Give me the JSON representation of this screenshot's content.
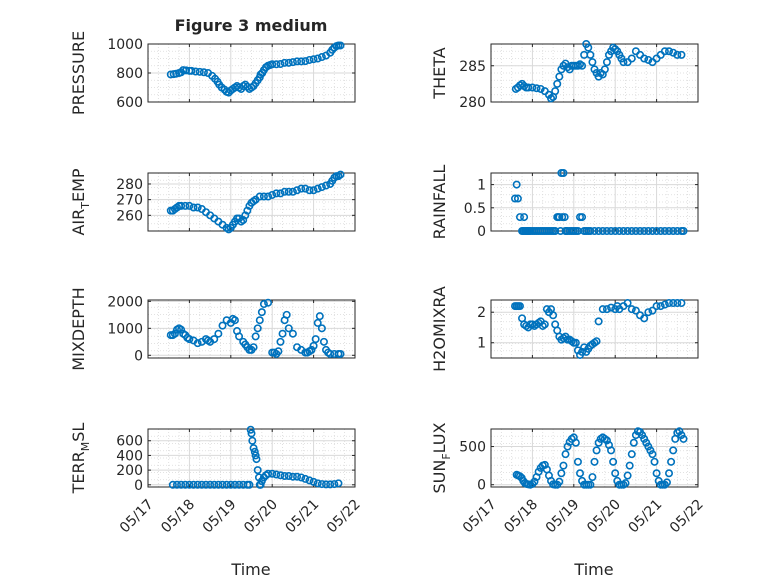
{
  "figure": {
    "title": "Figure 3 medium",
    "marker_color": "#0072bd",
    "axis_color": "#262626",
    "grid_color": "#d9d9d9"
  },
  "chart_data": [
    {
      "type": "scatter",
      "title": "Figure 3 medium",
      "ylabel": "PRESSURE",
      "ylabel_parts": [
        [
          "PRESSURE",
          ""
        ]
      ],
      "xlabel": "",
      "xlim": [
        0,
        5
      ],
      "ylim": [
        600,
        1000
      ],
      "ytick_values": [
        600,
        800,
        1000
      ],
      "yticks": [
        "600",
        "800",
        "1000"
      ],
      "xticks": [
        "05/17",
        "05/18",
        "05/19",
        "05/20",
        "05/21",
        "05/22"
      ],
      "grid": true,
      "x": [
        0.55,
        0.62,
        0.68,
        0.75,
        0.8,
        0.85,
        0.92,
        1.0,
        1.05,
        1.15,
        1.25,
        1.35,
        1.45,
        1.55,
        1.62,
        1.68,
        1.72,
        1.78,
        1.85,
        1.9,
        1.95,
        2.0,
        2.05,
        2.1,
        2.15,
        2.2,
        2.25,
        2.3,
        2.35,
        2.4,
        2.45,
        2.5,
        2.55,
        2.6,
        2.65,
        2.7,
        2.72,
        2.76,
        2.8,
        2.85,
        2.9,
        2.95,
        3.0,
        3.1,
        3.2,
        3.3,
        3.4,
        3.5,
        3.6,
        3.7,
        3.8,
        3.9,
        4.0,
        4.1,
        4.2,
        4.3,
        4.4,
        4.45,
        4.5,
        4.55,
        4.6,
        4.65
      ],
      "y": [
        790,
        792,
        795,
        800,
        805,
        820,
        818,
        815,
        815,
        810,
        808,
        805,
        800,
        780,
        760,
        740,
        720,
        700,
        685,
        670,
        665,
        680,
        690,
        700,
        710,
        700,
        690,
        710,
        720,
        705,
        690,
        700,
        710,
        730,
        750,
        770,
        790,
        800,
        820,
        840,
        850,
        855,
        860,
        860,
        862,
        870,
        870,
        875,
        880,
        880,
        882,
        890,
        895,
        900,
        910,
        920,
        940,
        960,
        975,
        985,
        990,
        990
      ]
    },
    {
      "type": "scatter",
      "ylabel": "THETA",
      "ylabel_parts": [
        [
          "THETA",
          ""
        ]
      ],
      "xlabel": "",
      "xlim": [
        0,
        5
      ],
      "ylim": [
        280,
        288
      ],
      "ytick_values": [
        280,
        285
      ],
      "yticks": [
        "280",
        "285"
      ],
      "xticks": [
        "05/17",
        "05/18",
        "05/19",
        "05/20",
        "05/21",
        "05/22"
      ],
      "grid": true,
      "x": [
        0.6,
        0.65,
        0.7,
        0.75,
        0.8,
        0.85,
        0.9,
        1.0,
        1.1,
        1.2,
        1.3,
        1.4,
        1.45,
        1.5,
        1.55,
        1.6,
        1.65,
        1.7,
        1.75,
        1.8,
        1.85,
        1.9,
        1.95,
        2.0,
        2.05,
        2.1,
        2.15,
        2.2,
        2.25,
        2.3,
        2.35,
        2.4,
        2.45,
        2.5,
        2.55,
        2.6,
        2.65,
        2.7,
        2.75,
        2.8,
        2.85,
        2.9,
        2.95,
        3.0,
        3.05,
        3.1,
        3.15,
        3.2,
        3.3,
        3.4,
        3.5,
        3.6,
        3.7,
        3.8,
        3.9,
        4.0,
        4.1,
        4.2,
        4.3,
        4.4,
        4.5,
        4.6
      ],
      "y": [
        281.8,
        282.0,
        282.3,
        282.5,
        282.2,
        282.0,
        282.0,
        282.0,
        281.9,
        281.8,
        281.5,
        281.0,
        280.5,
        280.7,
        281.5,
        282.5,
        283.5,
        284.5,
        285.0,
        285.3,
        284.8,
        284.5,
        285.0,
        285.0,
        285.0,
        285.0,
        285.2,
        285.0,
        286.5,
        288.0,
        287.5,
        286.5,
        285.5,
        284.5,
        284.0,
        283.5,
        284.0,
        283.8,
        284.5,
        285.5,
        286.5,
        287.0,
        287.5,
        287.3,
        287.0,
        286.5,
        286.0,
        285.5,
        285.5,
        286.0,
        287.0,
        286.5,
        286.0,
        285.8,
        285.5,
        286.0,
        286.5,
        287.0,
        287.0,
        286.8,
        286.5,
        286.5
      ]
    },
    {
      "type": "scatter",
      "ylabel": "AIR_TEMP",
      "ylabel_parts": [
        [
          "AIR",
          ""
        ],
        [
          "T",
          "sub"
        ],
        [
          "EMP",
          ""
        ]
      ],
      "xlabel": "",
      "xlim": [
        0,
        5
      ],
      "ylim": [
        250,
        287
      ],
      "ytick_values": [
        260,
        270,
        280
      ],
      "yticks": [
        "260",
        "270",
        "280"
      ],
      "xticks": [
        "05/17",
        "05/18",
        "05/19",
        "05/20",
        "05/21",
        "05/22"
      ],
      "grid": true,
      "x": [
        0.55,
        0.6,
        0.65,
        0.7,
        0.75,
        0.8,
        0.9,
        1.0,
        1.1,
        1.2,
        1.3,
        1.4,
        1.5,
        1.6,
        1.7,
        1.8,
        1.9,
        1.95,
        2.0,
        2.05,
        2.1,
        2.15,
        2.2,
        2.25,
        2.3,
        2.35,
        2.4,
        2.45,
        2.5,
        2.55,
        2.6,
        2.7,
        2.8,
        2.9,
        3.0,
        3.1,
        3.2,
        3.3,
        3.4,
        3.5,
        3.6,
        3.7,
        3.8,
        3.9,
        4.0,
        4.1,
        4.2,
        4.3,
        4.4,
        4.45,
        4.5,
        4.55,
        4.6,
        4.65
      ],
      "y": [
        263,
        263,
        264,
        265,
        266,
        266,
        266,
        266,
        265,
        265,
        264,
        262,
        260,
        258,
        256,
        254,
        252,
        251,
        252,
        254,
        256,
        258,
        258,
        256,
        257,
        260,
        263,
        266,
        268,
        269,
        270,
        272,
        272,
        272,
        273,
        274,
        274,
        275,
        275,
        275,
        276,
        277,
        277,
        276,
        276,
        277,
        278,
        279,
        280,
        282,
        284,
        285,
        285,
        286
      ]
    },
    {
      "type": "scatter",
      "ylabel": "RAINFALL",
      "ylabel_parts": [
        [
          "RAINFALL",
          ""
        ]
      ],
      "xlabel": "",
      "xlim": [
        0,
        5
      ],
      "ylim": [
        0,
        1.25
      ],
      "ytick_values": [
        0,
        0.5,
        1
      ],
      "yticks": [
        "0",
        "0.5",
        "1"
      ],
      "xticks": [
        "05/17",
        "05/18",
        "05/19",
        "05/20",
        "05/21",
        "05/22"
      ],
      "grid": true,
      "x": [
        0.58,
        0.62,
        0.65,
        0.7,
        0.75,
        0.78,
        0.8,
        0.82,
        0.85,
        0.88,
        0.9,
        0.92,
        0.95,
        1.0,
        1.05,
        1.1,
        1.15,
        1.2,
        1.25,
        1.3,
        1.35,
        1.4,
        1.45,
        1.5,
        1.55,
        1.6,
        1.62,
        1.65,
        1.68,
        1.7,
        1.72,
        1.75,
        1.78,
        1.8,
        1.82,
        1.85,
        1.9,
        1.95,
        2.0,
        2.05,
        2.1,
        2.15,
        2.2,
        2.25,
        2.3,
        2.35,
        2.4,
        2.5,
        2.6,
        2.7,
        2.8,
        2.9,
        3.0,
        3.1,
        3.2,
        3.3,
        3.4,
        3.5,
        3.6,
        3.7,
        3.8,
        3.9,
        4.0,
        4.1,
        4.2,
        4.3,
        4.4,
        4.5,
        4.6,
        4.65
      ],
      "y": [
        0.7,
        1.0,
        0.7,
        0.3,
        0,
        0,
        0.3,
        0,
        0,
        0,
        0,
        0,
        0,
        0,
        0,
        0,
        0,
        0,
        0,
        0,
        0,
        0,
        0,
        0,
        0,
        0.3,
        0.3,
        0.3,
        0,
        1.25,
        0.3,
        1.25,
        0.3,
        0,
        0,
        0,
        0,
        0,
        0,
        0,
        0,
        0.3,
        0.3,
        0,
        0,
        0,
        0,
        0,
        0,
        0,
        0,
        0,
        0,
        0,
        0,
        0,
        0,
        0,
        0,
        0,
        0,
        0,
        0,
        0,
        0,
        0,
        0,
        0,
        0,
        0
      ]
    },
    {
      "type": "scatter",
      "ylabel": "MIXDEPTH",
      "ylabel_parts": [
        [
          "MIXDEPTH",
          ""
        ]
      ],
      "xlabel": "",
      "xlim": [
        0,
        5
      ],
      "ylim": [
        -100,
        2050
      ],
      "ytick_values": [
        0,
        1000,
        2000
      ],
      "yticks": [
        "0",
        "1000",
        "2000"
      ],
      "xticks": [
        "05/17",
        "05/18",
        "05/19",
        "05/20",
        "05/21",
        "05/22"
      ],
      "grid": true,
      "x": [
        0.55,
        0.6,
        0.65,
        0.7,
        0.75,
        0.8,
        0.85,
        0.9,
        0.95,
        1.0,
        1.1,
        1.2,
        1.3,
        1.4,
        1.45,
        1.5,
        1.6,
        1.7,
        1.8,
        1.9,
        2.0,
        2.05,
        2.1,
        2.15,
        2.2,
        2.3,
        2.35,
        2.4,
        2.45,
        2.5,
        2.55,
        2.6,
        2.65,
        2.7,
        2.75,
        2.8,
        2.9,
        3.0,
        3.05,
        3.1,
        3.15,
        3.2,
        3.25,
        3.3,
        3.35,
        3.4,
        3.5,
        3.6,
        3.7,
        3.8,
        3.85,
        3.9,
        3.95,
        4.0,
        4.05,
        4.1,
        4.15,
        4.2,
        4.25,
        4.3,
        4.35,
        4.4,
        4.5,
        4.6,
        4.65
      ],
      "y": [
        750,
        750,
        800,
        950,
        1000,
        950,
        800,
        750,
        650,
        600,
        550,
        450,
        500,
        600,
        550,
        500,
        600,
        800,
        1100,
        1300,
        1200,
        1350,
        1300,
        900,
        700,
        500,
        400,
        300,
        200,
        200,
        300,
        700,
        1000,
        1300,
        1600,
        1900,
        1950,
        100,
        100,
        50,
        150,
        500,
        800,
        1300,
        1500,
        1000,
        800,
        300,
        200,
        100,
        100,
        150,
        200,
        350,
        600,
        1200,
        1450,
        1000,
        500,
        200,
        100,
        50,
        50,
        50,
        50
      ]
    },
    {
      "type": "scatter",
      "ylabel": "H2OMIXRA",
      "ylabel_parts": [
        [
          "H2OMIXRA",
          ""
        ]
      ],
      "xlabel": "",
      "xlim": [
        0,
        5
      ],
      "ylim": [
        0.5,
        2.4
      ],
      "ytick_values": [
        1,
        2
      ],
      "yticks": [
        "1",
        "2"
      ],
      "xticks": [
        "05/17",
        "05/18",
        "05/19",
        "05/20",
        "05/21",
        "05/22"
      ],
      "grid": true,
      "x": [
        0.58,
        0.62,
        0.66,
        0.7,
        0.75,
        0.8,
        0.85,
        0.9,
        0.95,
        1.0,
        1.05,
        1.1,
        1.15,
        1.2,
        1.25,
        1.3,
        1.35,
        1.4,
        1.45,
        1.5,
        1.55,
        1.6,
        1.65,
        1.7,
        1.75,
        1.8,
        1.85,
        1.9,
        1.95,
        2.0,
        2.05,
        2.1,
        2.15,
        2.2,
        2.25,
        2.3,
        2.35,
        2.4,
        2.45,
        2.5,
        2.55,
        2.6,
        2.7,
        2.8,
        2.9,
        3.0,
        3.05,
        3.1,
        3.2,
        3.3,
        3.4,
        3.5,
        3.6,
        3.7,
        3.8,
        3.9,
        4.0,
        4.1,
        4.2,
        4.3,
        4.4,
        4.5,
        4.6
      ],
      "y": [
        2.2,
        2.2,
        2.2,
        2.2,
        1.8,
        1.6,
        1.55,
        1.5,
        1.6,
        1.6,
        1.55,
        1.6,
        1.65,
        1.7,
        1.55,
        1.6,
        2.1,
        2.0,
        2.1,
        1.9,
        1.6,
        1.4,
        1.2,
        1.1,
        1.15,
        1.2,
        1.1,
        1.1,
        1.05,
        1.0,
        1.0,
        0.75,
        0.6,
        0.7,
        0.85,
        0.7,
        0.8,
        0.9,
        0.95,
        1.0,
        1.05,
        1.7,
        2.1,
        2.1,
        2.15,
        2.1,
        2.2,
        2.1,
        2.2,
        2.3,
        2.1,
        2.05,
        1.9,
        1.8,
        2.0,
        2.05,
        2.2,
        2.2,
        2.25,
        2.3,
        2.3,
        2.3,
        2.3
      ]
    },
    {
      "type": "scatter",
      "ylabel": "TERR_MSL",
      "ylabel_parts": [
        [
          "TERR",
          ""
        ],
        [
          "M",
          "sub"
        ],
        [
          "SL",
          ""
        ]
      ],
      "xlabel": "",
      "xlim": [
        0,
        5
      ],
      "ylim": [
        -30,
        760
      ],
      "ytick_values": [
        0,
        200,
        400,
        600
      ],
      "yticks": [
        "0",
        "200",
        "400",
        "600"
      ],
      "xticks": [
        "05/17",
        "05/18",
        "05/19",
        "05/20",
        "05/21",
        "05/22"
      ],
      "grid": true,
      "x": [
        0.6,
        0.7,
        0.8,
        0.9,
        1.0,
        1.1,
        1.2,
        1.3,
        1.4,
        1.5,
        1.6,
        1.7,
        1.8,
        1.9,
        2.0,
        2.1,
        2.2,
        2.3,
        2.4,
        2.45,
        2.48,
        2.5,
        2.52,
        2.55,
        2.58,
        2.6,
        2.62,
        2.65,
        2.68,
        2.7,
        2.72,
        2.75,
        2.8,
        2.85,
        2.9,
        3.0,
        3.1,
        3.2,
        3.3,
        3.4,
        3.5,
        3.6,
        3.7,
        3.8,
        3.9,
        4.0,
        4.1,
        4.2,
        4.3,
        4.4,
        4.5,
        4.6
      ],
      "y": [
        0,
        0,
        0,
        0,
        0,
        0,
        0,
        0,
        0,
        0,
        0,
        0,
        0,
        0,
        0,
        0,
        0,
        0,
        0,
        0,
        750,
        700,
        600,
        500,
        450,
        400,
        350,
        200,
        100,
        0,
        0,
        50,
        100,
        130,
        150,
        150,
        140,
        130,
        120,
        120,
        110,
        110,
        100,
        80,
        60,
        40,
        20,
        10,
        5,
        5,
        10,
        20
      ]
    },
    {
      "type": "scatter",
      "ylabel": "SUN_FLUX",
      "ylabel_parts": [
        [
          "SUN",
          ""
        ],
        [
          "F",
          "sub"
        ],
        [
          "LUX",
          ""
        ]
      ],
      "xlabel": "",
      "xlim": [
        0,
        5
      ],
      "ylim": [
        -30,
        730
      ],
      "ytick_values": [
        0,
        500
      ],
      "yticks": [
        "0",
        "500"
      ],
      "xticks": [
        "05/17",
        "05/18",
        "05/19",
        "05/20",
        "05/21",
        "05/22"
      ],
      "grid": true,
      "x": [
        0.62,
        0.66,
        0.7,
        0.74,
        0.78,
        0.82,
        0.86,
        0.9,
        0.95,
        1.0,
        1.05,
        1.1,
        1.15,
        1.2,
        1.25,
        1.3,
        1.35,
        1.4,
        1.45,
        1.5,
        1.55,
        1.6,
        1.65,
        1.7,
        1.75,
        1.8,
        1.85,
        1.9,
        1.95,
        2.0,
        2.05,
        2.1,
        2.15,
        2.2,
        2.25,
        2.3,
        2.35,
        2.4,
        2.45,
        2.5,
        2.55,
        2.6,
        2.65,
        2.7,
        2.75,
        2.8,
        2.85,
        2.9,
        2.95,
        3.0,
        3.05,
        3.1,
        3.15,
        3.2,
        3.25,
        3.3,
        3.35,
        3.4,
        3.45,
        3.5,
        3.55,
        3.6,
        3.65,
        3.7,
        3.75,
        3.8,
        3.85,
        3.9,
        3.95,
        4.0,
        4.05,
        4.1,
        4.15,
        4.2,
        4.25,
        4.3,
        4.35,
        4.4,
        4.45,
        4.5,
        4.55,
        4.6,
        4.65
      ],
      "y": [
        130,
        120,
        110,
        90,
        50,
        20,
        10,
        5,
        0,
        10,
        40,
        100,
        170,
        220,
        250,
        260,
        200,
        120,
        50,
        5,
        0,
        0,
        40,
        150,
        250,
        400,
        500,
        560,
        600,
        620,
        550,
        300,
        150,
        50,
        0,
        0,
        0,
        0,
        100,
        300,
        450,
        550,
        600,
        620,
        600,
        580,
        520,
        450,
        300,
        150,
        50,
        0,
        0,
        0,
        20,
        120,
        250,
        400,
        550,
        650,
        700,
        690,
        650,
        600,
        550,
        500,
        450,
        400,
        300,
        150,
        50,
        0,
        0,
        0,
        30,
        150,
        300,
        450,
        600,
        680,
        700,
        650,
        600
      ]
    }
  ],
  "x_axis": {
    "label": "Time"
  }
}
